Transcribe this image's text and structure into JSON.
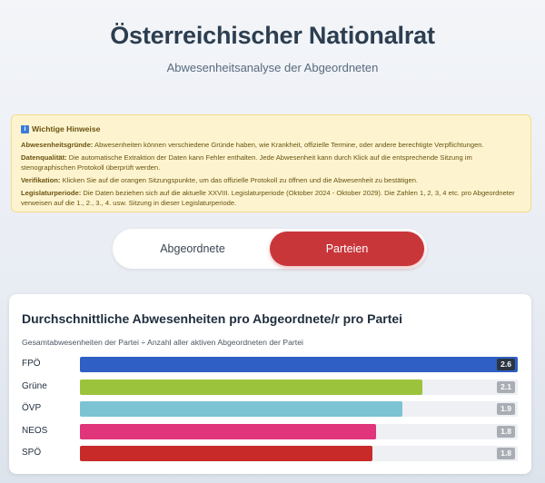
{
  "header": {
    "title": "Österreichischer Nationalrat",
    "subtitle": "Abwesenheitsanalyse der Abgeordneten"
  },
  "notice": {
    "icon": "info-icon",
    "title": "Wichtige Hinweise",
    "items": [
      {
        "label": "Abwesenheitsgründe:",
        "text": " Abwesenheiten können verschiedene Gründe haben, wie Krankheit, offizielle Termine, oder andere berechtigte Verpflichtungen."
      },
      {
        "label": "Datenqualität:",
        "text": " Die automatische Extraktion der Daten kann Fehler enthalten. Jede Abwesenheit kann durch Klick auf die entsprechende Sitzung im stenographischen Protokoll überprüft werden."
      },
      {
        "label": "Verifikation:",
        "text": " Klicken Sie auf die orangen Sitzungspunkte, um das offizielle Protokoll zu öffnen und die Abwesenheit zu bestätigen."
      },
      {
        "label": "Legislaturperiode:",
        "text": " Die Daten beziehen sich auf die aktuelle XXVIII. Legislaturperiode (Oktober 2024 - Oktober 2029). Die Zahlen 1, 2, 3, 4 etc. pro Abgeordneter verweisen auf die 1., 2., 3., 4. usw. Sitzung in dieser Legislaturperiode."
      }
    ]
  },
  "tabs": [
    {
      "label": "Abgeordnete",
      "active": false
    },
    {
      "label": "Parteien",
      "active": true
    }
  ],
  "chart_data": {
    "type": "bar",
    "orientation": "horizontal",
    "title": "Durchschnittliche Abwesenheiten pro Abgeordnete/r pro Partei",
    "subtitle": "Gesamtabwesenheiten der Partei ÷ Anzahl aller aktiven Abgeordneten der Partei",
    "xlim": [
      0,
      2.6
    ],
    "categories": [
      "FPÖ",
      "Grüne",
      "ÖVP",
      "NEOS",
      "SPÖ"
    ],
    "values": [
      2.6,
      2.1,
      1.9,
      1.8,
      1.8
    ],
    "value_labels": [
      "2.6",
      "2.1",
      "1.9",
      "1.8",
      "1.8"
    ],
    "colors": [
      "#2f5fc4",
      "#9bc43c",
      "#7cc3d3",
      "#e0357a",
      "#c82a2a"
    ],
    "fill_fractions": [
      1.0,
      0.783,
      0.737,
      0.676,
      0.668
    ]
  }
}
